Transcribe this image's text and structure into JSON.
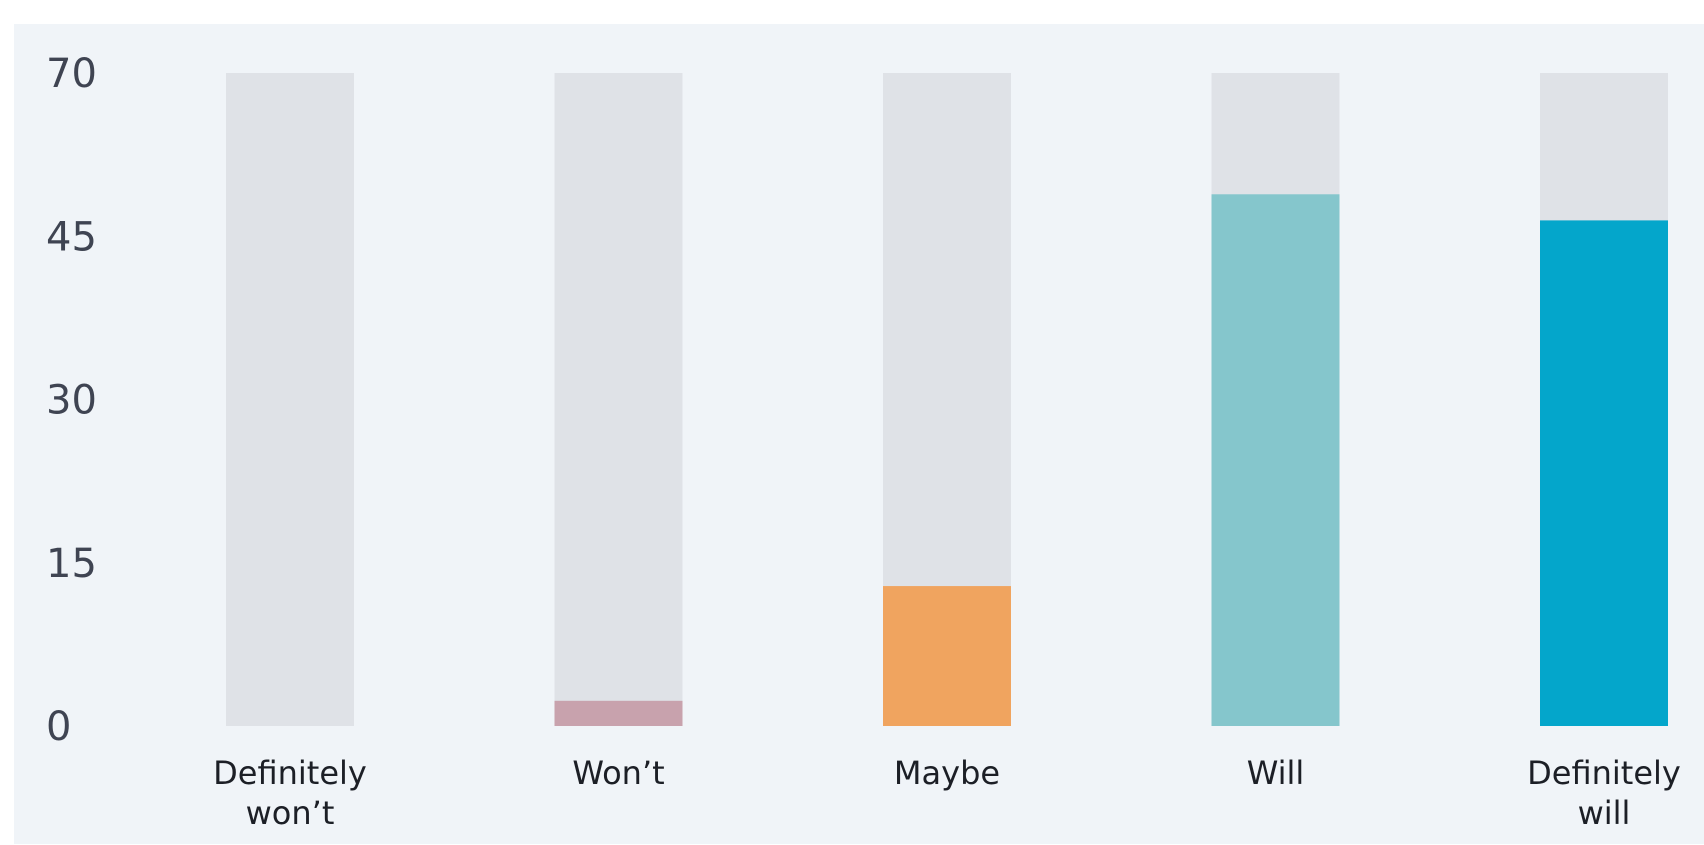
{
  "chart_data": {
    "type": "bar",
    "title": "",
    "xlabel": "",
    "ylabel": "",
    "ylim": [
      0,
      70
    ],
    "yticks": [
      "0",
      "15",
      "30",
      "45",
      "70"
    ],
    "categories": [
      [
        "Definitely",
        "won’t"
      ],
      [
        "Won’t"
      ],
      [
        "Maybe"
      ],
      [
        "Will"
      ],
      [
        "Definitely",
        "will"
      ]
    ],
    "values": [
      0,
      2.7,
      15,
      57,
      54.2
    ],
    "colors": [
      "#c8a2ad",
      "#c8a2ad",
      "#f0a45f",
      "#85c6cc",
      "#04a6cb"
    ],
    "track_color": "#dfe2e7",
    "grid": false,
    "legend": "none"
  }
}
